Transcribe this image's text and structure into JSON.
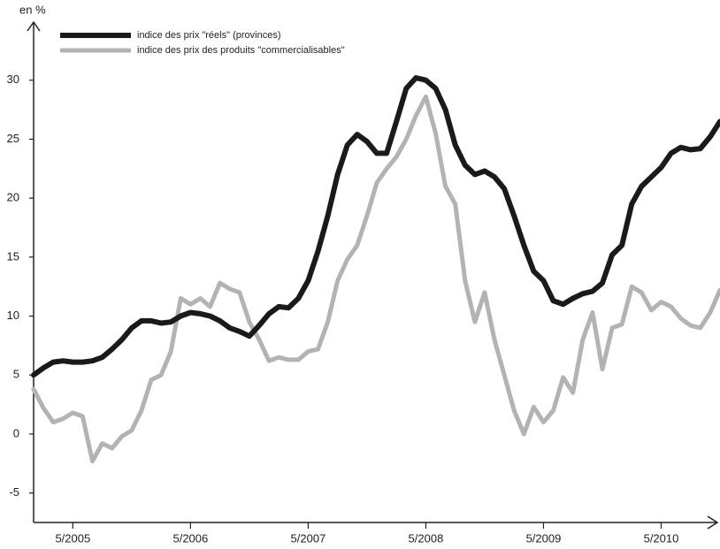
{
  "chart_data": {
    "type": "line",
    "ylabel": "en %",
    "categories": [
      null,
      null,
      null,
      null,
      "5/2005",
      null,
      null,
      null,
      null,
      null,
      null,
      null,
      null,
      null,
      null,
      null,
      "5/2006",
      null,
      null,
      null,
      null,
      null,
      null,
      null,
      null,
      null,
      null,
      null,
      "5/2007",
      null,
      null,
      null,
      null,
      null,
      null,
      null,
      null,
      null,
      null,
      null,
      "5/2008",
      null,
      null,
      null,
      null,
      null,
      null,
      null,
      null,
      null,
      null,
      null,
      "5/2009",
      null,
      null,
      null,
      null,
      null,
      null,
      null,
      null,
      null,
      null,
      null,
      "5/2010",
      null,
      null,
      null,
      null,
      null,
      null
    ],
    "series": [
      {
        "name": "indice des prix \"réels\" (provinces)",
        "color": "#1a1a1a",
        "values": [
          5.0,
          5.6,
          6.1,
          6.2,
          6.1,
          6.1,
          6.2,
          6.5,
          7.2,
          8.0,
          9.0,
          9.6,
          9.6,
          9.4,
          9.5,
          10.0,
          10.3,
          10.2,
          10.0,
          9.6,
          9.0,
          8.7,
          8.3,
          9.2,
          10.2,
          10.8,
          10.7,
          11.5,
          13.0,
          15.5,
          18.5,
          22.0,
          24.5,
          25.4,
          24.8,
          23.8,
          23.8,
          26.5,
          29.3,
          30.2,
          30.0,
          29.3,
          27.5,
          24.5,
          22.8,
          22.0,
          22.3,
          21.8,
          20.8,
          18.5,
          16.0,
          13.8,
          13.0,
          11.3,
          11.0,
          11.5,
          11.9,
          12.1,
          12.8,
          15.2,
          16.0,
          19.5,
          21.0,
          21.8,
          22.6,
          23.8,
          24.3,
          24.1,
          24.2,
          25.2,
          26.5
        ]
      },
      {
        "name": "indice des prix des produits \"commercialisables\"",
        "color": "#b3b3b3",
        "values": [
          3.8,
          2.2,
          1.0,
          1.3,
          1.8,
          1.5,
          -2.3,
          -0.8,
          -1.2,
          -0.2,
          0.3,
          2.0,
          4.6,
          5.0,
          7.0,
          11.5,
          11.0,
          11.5,
          10.8,
          12.8,
          12.3,
          12.0,
          9.5,
          8.0,
          6.2,
          6.5,
          6.3,
          6.3,
          7.0,
          7.2,
          9.5,
          13.0,
          14.8,
          16.0,
          18.5,
          21.3,
          22.5,
          23.5,
          25.0,
          27.0,
          28.6,
          25.5,
          21.0,
          19.5,
          13.0,
          9.5,
          12.0,
          8.0,
          5.0,
          2.0,
          0.0,
          2.3,
          1.0,
          2.0,
          4.8,
          3.5,
          8.0,
          10.3,
          5.5,
          9.0,
          9.3,
          12.5,
          12.0,
          10.5,
          11.2,
          10.8,
          9.8,
          9.2,
          9.0,
          10.3,
          12.2
        ]
      }
    ],
    "ylim": [
      -7.5,
      34.7
    ],
    "yticks": [
      -5,
      0,
      5,
      10,
      15,
      20,
      25,
      30
    ],
    "grid": false
  }
}
